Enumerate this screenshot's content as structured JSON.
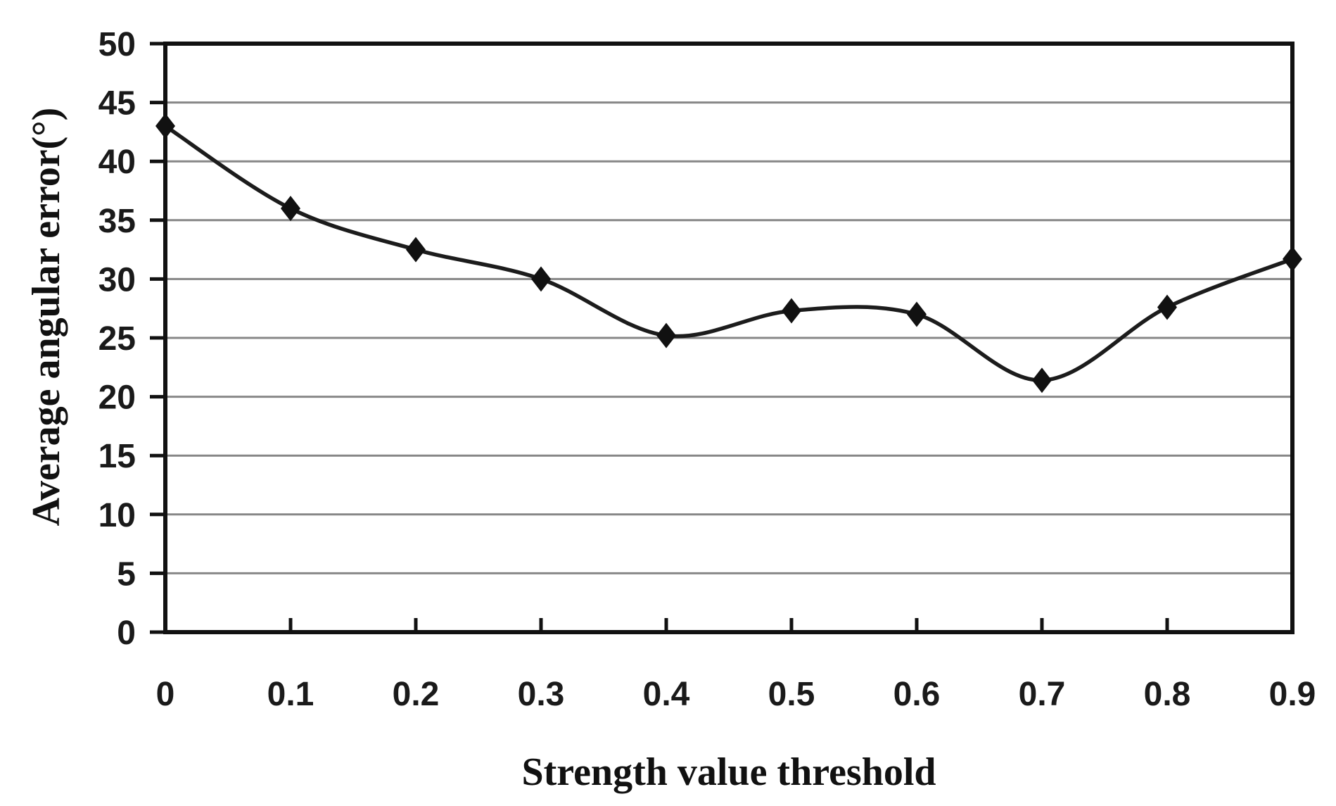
{
  "chart_data": {
    "type": "line",
    "title": "",
    "xlabel": "Strength value threshold",
    "ylabel": "Average angular error(°)",
    "x": [
      0,
      0.1,
      0.2,
      0.3,
      0.4,
      0.5,
      0.6,
      0.7,
      0.8,
      0.9
    ],
    "xtick_labels": [
      "0",
      "0.1",
      "0.2",
      "0.3",
      "0.4",
      "0.5",
      "0.6",
      "0.7",
      "0.8",
      "0.9"
    ],
    "series": [
      {
        "name": "average angular error",
        "values": [
          43,
          36,
          32.5,
          30,
          25.2,
          27.3,
          27,
          21.4,
          27.6,
          31.7
        ]
      }
    ],
    "xlim": [
      0,
      0.9
    ],
    "ylim": [
      0,
      50
    ],
    "ytick_step": 5,
    "ytick_labels": [
      "0",
      "5",
      "10",
      "15",
      "20",
      "25",
      "30",
      "35",
      "40",
      "45",
      "50"
    ],
    "grid": "horizontal",
    "legend": "none",
    "marker": "diamond",
    "line_smoothing": true,
    "colors": {
      "line": "#1c1c1c",
      "marker": "#111111",
      "grid": "#878787",
      "axis": "#111111",
      "text": "#1a1a1a",
      "background": "#ffffff"
    }
  }
}
